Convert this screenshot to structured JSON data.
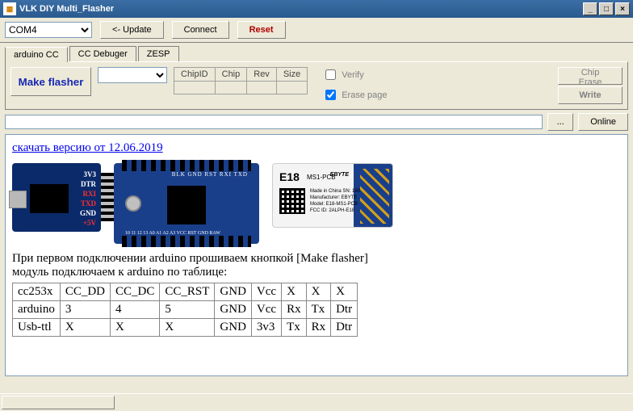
{
  "window": {
    "title": "VLK DIY Multi_Flasher"
  },
  "toolbar": {
    "port": "COM4",
    "update": "<-  Update",
    "connect": "Connect",
    "reset": "Reset"
  },
  "tabs": [
    "arduino CC",
    "CC Debuger",
    "ZESP"
  ],
  "active_tab": 0,
  "panel": {
    "make_flasher": "Make flasher",
    "headers": [
      "ChipID",
      "Chip",
      "Rev",
      "Size"
    ],
    "verify": "Verify",
    "erase_page": "Erase page",
    "verify_checked": false,
    "erase_page_checked": true,
    "chip_erase": "Chip Erase",
    "write": "Write"
  },
  "pathbar": {
    "browse": "...",
    "online": "Online"
  },
  "content": {
    "download_link": "скачать версию от 12.06.2019",
    "usb_ttl_labels": [
      "3V3",
      "DTR",
      "RXI",
      "TXD",
      "GND",
      "+5V"
    ],
    "arduino_top": "BLK   GND RST RXI TXD",
    "arduino_bot": "10 11 12 13 A0 A1 A2 A3   VCC RST GND RAW",
    "e18": {
      "model": "E18",
      "sub": "MS1-PCB",
      "brand": "EBYTE",
      "info": "Made in China   SN: 18031800001\nManufacturer: EBYTE\nModel: E18-MS1-PCB\nFCC ID: 2ALPH-E18"
    },
    "instr1": "При первом подключении arduino прошиваем кнопкой [Make flasher]",
    "instr2": "модуль подключаем к arduino по таблице:",
    "wiring": {
      "rows": [
        [
          "cc253x",
          "CC_DD",
          "CC_DC",
          "CC_RST",
          "GND",
          "Vcc",
          "X",
          "X",
          "X"
        ],
        [
          "arduino",
          "3",
          "4",
          "5",
          "GND",
          "Vcc",
          "Rx",
          "Tx",
          "Dtr"
        ],
        [
          "Usb-ttl",
          "X",
          "X",
          "X",
          "GND",
          "3v3",
          "Tx",
          "Rx",
          "Dtr"
        ]
      ]
    }
  }
}
